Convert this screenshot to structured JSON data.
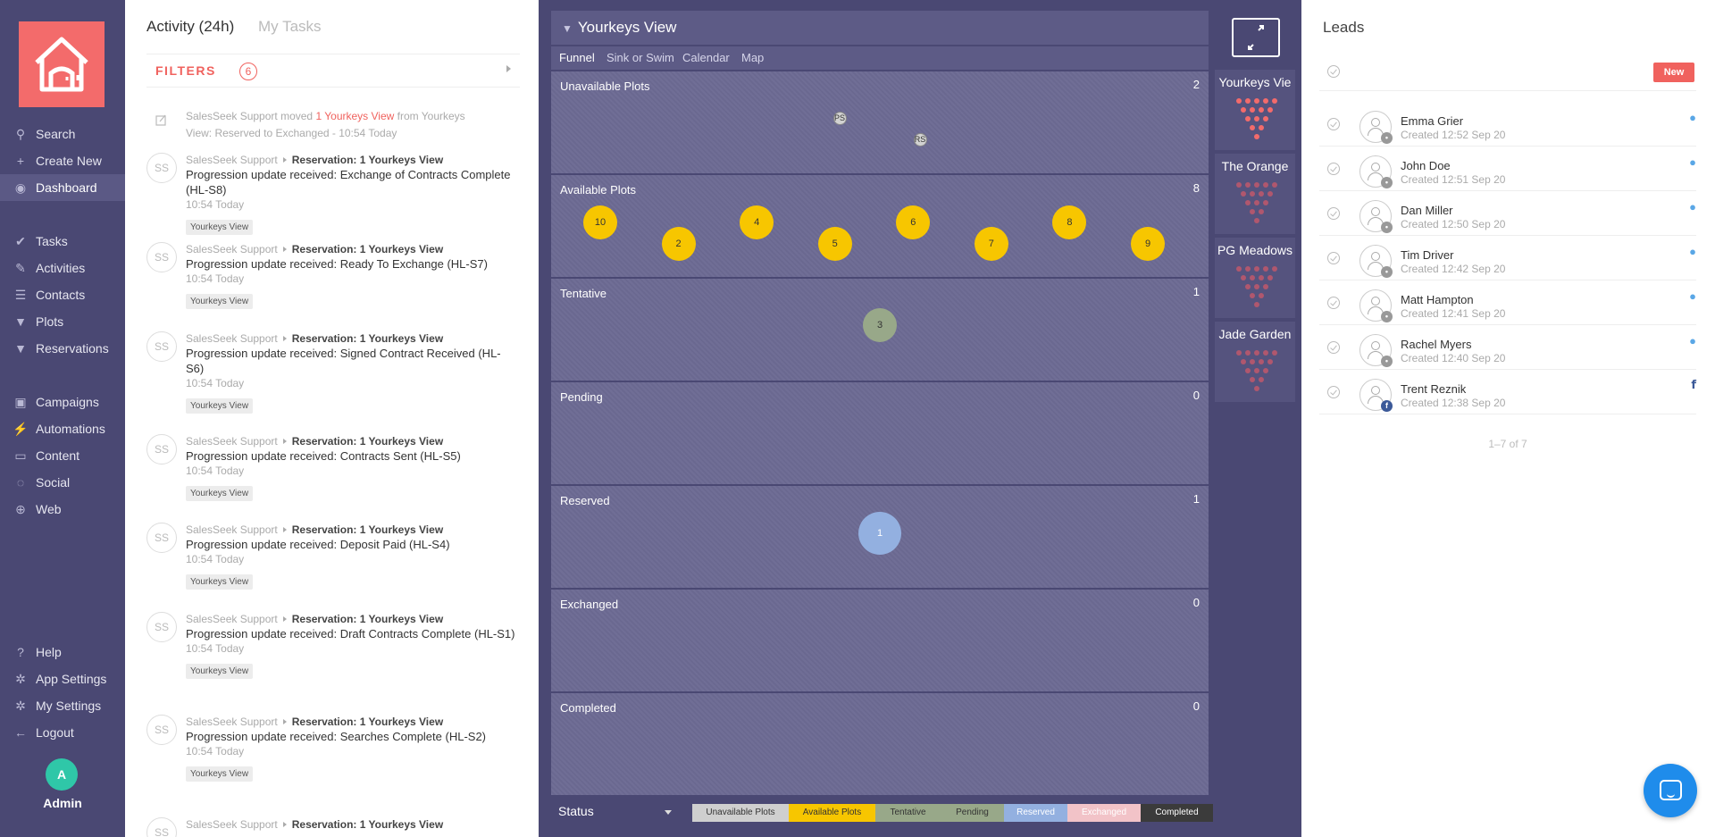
{
  "nav": {
    "items": [
      {
        "label": "Search",
        "icon": "search-icon"
      },
      {
        "label": "Create New",
        "icon": "plus-icon"
      },
      {
        "label": "Dashboard",
        "icon": "dashboard-icon"
      },
      {
        "label": "Tasks",
        "icon": "check-icon"
      },
      {
        "label": "Activities",
        "icon": "activities-icon"
      },
      {
        "label": "Contacts",
        "icon": "list-icon"
      },
      {
        "label": "Plots",
        "icon": "funnel-icon"
      },
      {
        "label": "Reservations",
        "icon": "funnel-icon"
      },
      {
        "label": "Campaigns",
        "icon": "campaigns-icon"
      },
      {
        "label": "Automations",
        "icon": "bolt-icon"
      },
      {
        "label": "Content",
        "icon": "folder-icon"
      },
      {
        "label": "Social",
        "icon": "chat-icon"
      },
      {
        "label": "Web",
        "icon": "globe-icon"
      },
      {
        "label": "Help",
        "icon": "help-icon"
      },
      {
        "label": "App Settings",
        "icon": "gear-icon"
      },
      {
        "label": "My Settings",
        "icon": "gear-icon"
      },
      {
        "label": "Logout",
        "icon": "arrow-left-icon"
      }
    ],
    "active": "Dashboard",
    "user": {
      "initial": "A",
      "name": "Admin",
      "color": "#2fc7a8"
    }
  },
  "activity": {
    "tabs": [
      "Activity (24h)",
      "My Tasks"
    ],
    "filters": {
      "label": "FILTERS",
      "count": "6"
    },
    "first": {
      "user": "SalesSeek Support",
      "verb": "moved",
      "link": "1 Yourkeys View",
      "rest1": "from Yourkeys",
      "rest2": "View: Reserved to Exchanged - 10:54 Today"
    },
    "items": [
      {
        "initials": "SS",
        "user": "SalesSeek Support",
        "target": "Reservation: 1 Yourkeys View",
        "title": "Progression update received: Exchange of Contracts Complete (HL-S8)",
        "time": "10:54 Today",
        "tag": "Yourkeys View"
      },
      {
        "initials": "SS",
        "user": "SalesSeek Support",
        "target": "Reservation: 1 Yourkeys View",
        "title": "Progression update received: Ready To Exchange (HL-S7)",
        "time": "10:54 Today",
        "tag": "Yourkeys View"
      },
      {
        "initials": "SS",
        "user": "SalesSeek Support",
        "target": "Reservation: 1 Yourkeys View",
        "title": "Progression update received: Signed Contract Received (HL-S6)",
        "time": "10:54 Today",
        "tag": "Yourkeys View"
      },
      {
        "initials": "SS",
        "user": "SalesSeek Support",
        "target": "Reservation: 1 Yourkeys View",
        "title": "Progression update received: Contracts Sent (HL-S5)",
        "time": "10:54 Today",
        "tag": "Yourkeys View"
      },
      {
        "initials": "SS",
        "user": "SalesSeek Support",
        "target": "Reservation: 1 Yourkeys View",
        "title": "Progression update received: Deposit Paid (HL-S4)",
        "time": "10:54 Today",
        "tag": "Yourkeys View"
      },
      {
        "initials": "SS",
        "user": "SalesSeek Support",
        "target": "Reservation: 1 Yourkeys View",
        "title": "Progression update received: Draft Contracts Complete (HL-S1)",
        "time": "10:54 Today",
        "tag": "Yourkeys View"
      },
      {
        "initials": "SS",
        "user": "SalesSeek Support",
        "target": "Reservation: 1 Yourkeys View",
        "title": "Progression update received: Searches Complete (HL-S2)",
        "time": "10:54 Today",
        "tag": "Yourkeys View"
      },
      {
        "initials": "SS",
        "user": "SalesSeek Support",
        "target": "Reservation: 1 Yourkeys View",
        "title": "",
        "time": "",
        "tag": ""
      }
    ]
  },
  "board": {
    "title": "Yourkeys View",
    "tabs": [
      "Funnel",
      "Sink or Swim",
      "Calendar",
      "Map"
    ],
    "active_tab": "Funnel",
    "stages": [
      {
        "name": "Unavailable Plots",
        "count": "2",
        "plots": [
          {
            "label": "PS",
            "style": "grey",
            "slot": 0
          },
          {
            "label": "RS",
            "style": "grey",
            "slot": 1
          }
        ]
      },
      {
        "name": "Available Plots",
        "count": "8",
        "plots": [
          {
            "label": "10"
          },
          {
            "label": "2"
          },
          {
            "label": "4"
          },
          {
            "label": "5"
          },
          {
            "label": "6"
          },
          {
            "label": "7"
          },
          {
            "label": "8"
          },
          {
            "label": "9"
          }
        ]
      },
      {
        "name": "Tentative",
        "count": "1",
        "plots": [
          {
            "label": "3",
            "style": "green"
          }
        ]
      },
      {
        "name": "Pending",
        "count": "0",
        "plots": []
      },
      {
        "name": "Reserved",
        "count": "1",
        "plots": [
          {
            "label": "1",
            "style": "blue"
          }
        ]
      },
      {
        "name": "Exchanged",
        "count": "0",
        "plots": []
      },
      {
        "name": "Completed",
        "count": "0",
        "plots": []
      }
    ],
    "status": {
      "label": "Status",
      "legend": [
        {
          "label": "Unavailable Plots",
          "bg": "#cfcfcf",
          "fg": "#333"
        },
        {
          "label": "Available Plots",
          "bg": "#f7c600",
          "fg": "#333"
        },
        {
          "label": "Tentative",
          "bg": "#98a889",
          "fg": "#333"
        },
        {
          "label": "Pending",
          "bg": "#98a889",
          "fg": "#333"
        },
        {
          "label": "Reserved",
          "bg": "#93b0e0",
          "fg": "#fff"
        },
        {
          "label": "Exchanged",
          "bg": "#f2c3c8",
          "fg": "#fff"
        },
        {
          "label": "Completed",
          "bg": "#3b3b3b",
          "fg": "#fff"
        }
      ]
    }
  },
  "views": [
    {
      "name": "Yourkeys Vie",
      "color": "#f36b6b"
    },
    {
      "name": "The Orange",
      "color": "#b0576e"
    },
    {
      "name": "PG Meadows",
      "color": "#b0576e"
    },
    {
      "name": "Jade Garden",
      "color": "#b0576e"
    }
  ],
  "leads": {
    "title": "Leads",
    "new_label": "New",
    "items": [
      {
        "name": "Emma Grier",
        "created": "Created 12:52 Sep 20",
        "source": "drop"
      },
      {
        "name": "John Doe",
        "created": "Created 12:51 Sep 20",
        "source": "drop"
      },
      {
        "name": "Dan Miller",
        "created": "Created 12:50 Sep 20",
        "source": "drop"
      },
      {
        "name": "Tim Driver",
        "created": "Created 12:42 Sep 20",
        "source": "drop"
      },
      {
        "name": "Matt Hampton",
        "created": "Created 12:41 Sep 20",
        "source": "drop"
      },
      {
        "name": "Rachel Myers",
        "created": "Created 12:40 Sep 20",
        "source": "drop"
      },
      {
        "name": "Trent Reznik",
        "created": "Created 12:38 Sep 20",
        "source": "facebook"
      }
    ],
    "pager": "1–7 of 7"
  }
}
